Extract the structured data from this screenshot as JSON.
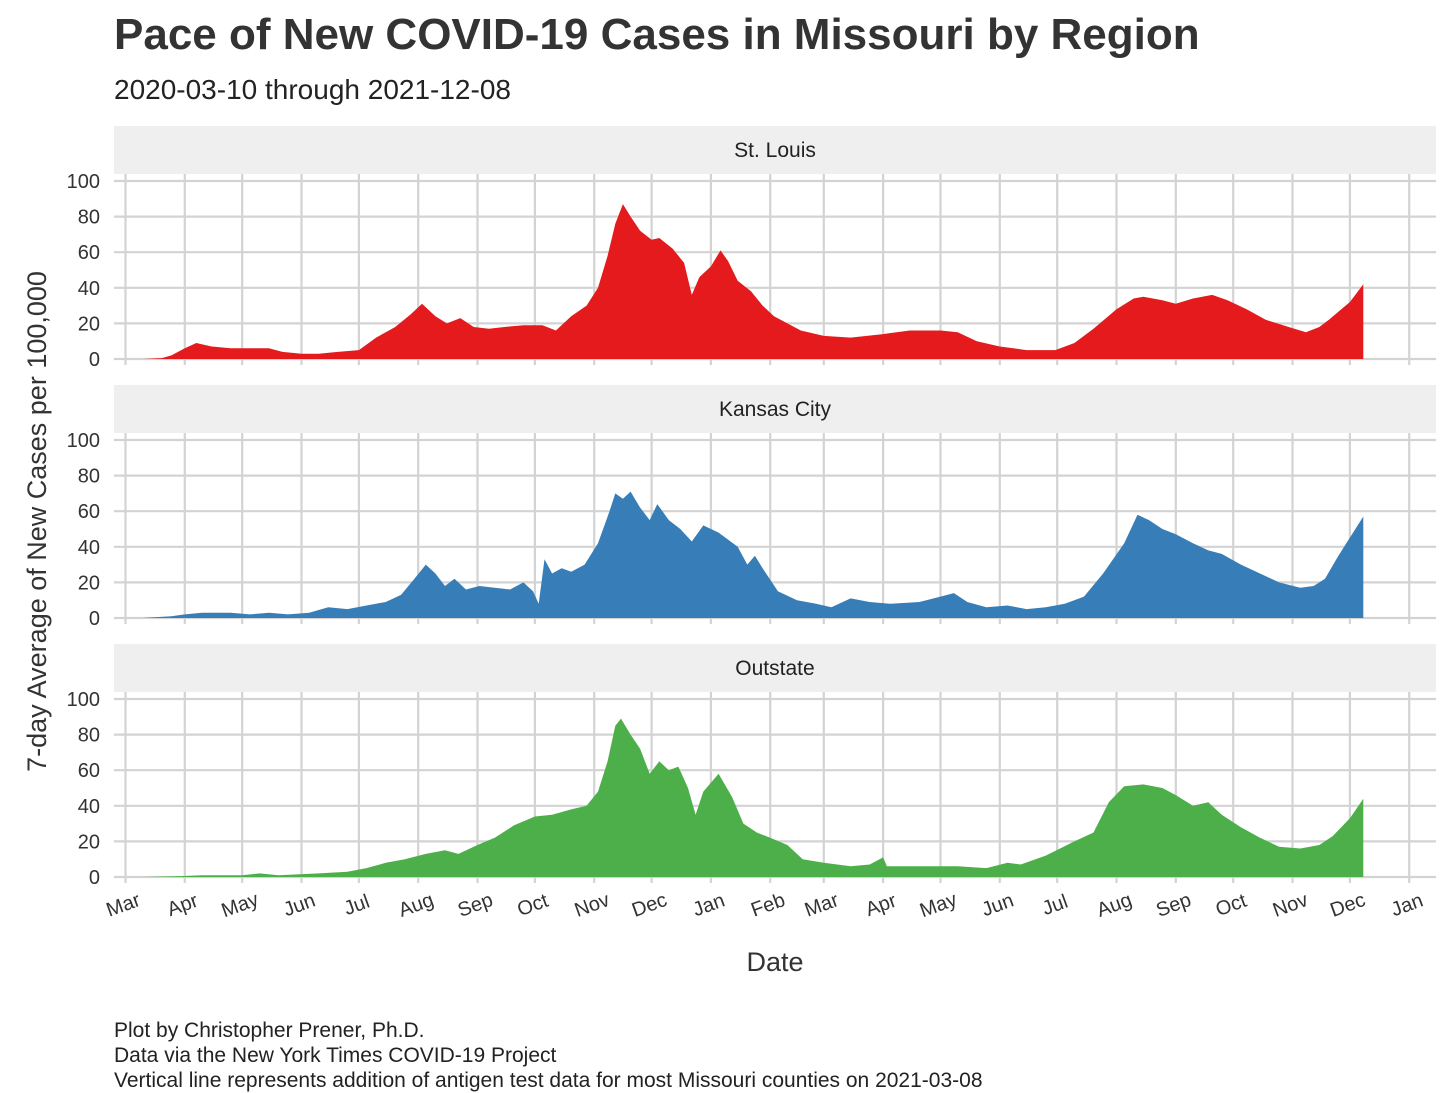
{
  "title": "Pace of New COVID-19 Cases in Missouri by Region",
  "subtitle": "2020-03-10 through 2021-12-08",
  "captions": [
    "Plot by Christopher Prener, Ph.D.",
    "Data via the New York Times COVID-19 Project",
    "Vertical line represents addition of antigen test data for most Missouri counties on 2021-03-08"
  ],
  "chart_data": {
    "type": "area",
    "facet_layout": "stacked panels, shared x axis",
    "xlabel": "Date",
    "ylabel": "7-day Average of New Cases per 100,000",
    "xlim": [
      "2020-02-24",
      "2022-01-15"
    ],
    "ylim": [
      0,
      100
    ],
    "y_ticks": [
      0,
      20,
      40,
      60,
      80,
      100
    ],
    "x_ticks": [
      {
        "date": "2020-03-01",
        "label": "Mar"
      },
      {
        "date": "2020-04-01",
        "label": "Apr"
      },
      {
        "date": "2020-05-01",
        "label": "May"
      },
      {
        "date": "2020-06-01",
        "label": "Jun"
      },
      {
        "date": "2020-07-01",
        "label": "Jul"
      },
      {
        "date": "2020-08-01",
        "label": "Aug"
      },
      {
        "date": "2020-09-01",
        "label": "Sep"
      },
      {
        "date": "2020-10-01",
        "label": "Oct"
      },
      {
        "date": "2020-11-01",
        "label": "Nov"
      },
      {
        "date": "2020-12-01",
        "label": "Dec"
      },
      {
        "date": "2021-01-01",
        "label": "Jan"
      },
      {
        "date": "2021-02-01",
        "label": "Feb"
      },
      {
        "date": "2021-03-01",
        "label": "Mar"
      },
      {
        "date": "2021-04-01",
        "label": "Apr"
      },
      {
        "date": "2021-05-01",
        "label": "May"
      },
      {
        "date": "2021-06-01",
        "label": "Jun"
      },
      {
        "date": "2021-07-01",
        "label": "Jul"
      },
      {
        "date": "2021-08-01",
        "label": "Aug"
      },
      {
        "date": "2021-09-01",
        "label": "Sep"
      },
      {
        "date": "2021-10-01",
        "label": "Oct"
      },
      {
        "date": "2021-11-01",
        "label": "Nov"
      },
      {
        "date": "2021-12-01",
        "label": "Dec"
      },
      {
        "date": "2022-01-01",
        "label": "Jan"
      }
    ],
    "grid": true,
    "legend": "none",
    "panels": [
      {
        "name": "St. Louis",
        "color": "#e41a1c",
        "points": [
          [
            "2020-03-10",
            0
          ],
          [
            "2020-03-20",
            0.5
          ],
          [
            "2020-03-25",
            2
          ],
          [
            "2020-04-01",
            6
          ],
          [
            "2020-04-07",
            9
          ],
          [
            "2020-04-15",
            7
          ],
          [
            "2020-04-25",
            6
          ],
          [
            "2020-05-05",
            6
          ],
          [
            "2020-05-15",
            6
          ],
          [
            "2020-05-22",
            4
          ],
          [
            "2020-06-01",
            3
          ],
          [
            "2020-06-10",
            3
          ],
          [
            "2020-06-20",
            4
          ],
          [
            "2020-07-01",
            5
          ],
          [
            "2020-07-10",
            12
          ],
          [
            "2020-07-20",
            18
          ],
          [
            "2020-07-28",
            25
          ],
          [
            "2020-08-03",
            31
          ],
          [
            "2020-08-10",
            24
          ],
          [
            "2020-08-16",
            20
          ],
          [
            "2020-08-23",
            23
          ],
          [
            "2020-08-30",
            18
          ],
          [
            "2020-09-07",
            17
          ],
          [
            "2020-09-15",
            18
          ],
          [
            "2020-09-25",
            19
          ],
          [
            "2020-10-05",
            19
          ],
          [
            "2020-10-12",
            16
          ],
          [
            "2020-10-20",
            24
          ],
          [
            "2020-10-28",
            30
          ],
          [
            "2020-11-03",
            40
          ],
          [
            "2020-11-08",
            58
          ],
          [
            "2020-11-12",
            76
          ],
          [
            "2020-11-16",
            87
          ],
          [
            "2020-11-20",
            80
          ],
          [
            "2020-11-25",
            72
          ],
          [
            "2020-12-01",
            67
          ],
          [
            "2020-12-05",
            68
          ],
          [
            "2020-12-12",
            62
          ],
          [
            "2020-12-18",
            54
          ],
          [
            "2020-12-22",
            36
          ],
          [
            "2020-12-26",
            46
          ],
          [
            "2021-01-01",
            52
          ],
          [
            "2021-01-06",
            61
          ],
          [
            "2021-01-10",
            55
          ],
          [
            "2021-01-15",
            44
          ],
          [
            "2021-01-22",
            38
          ],
          [
            "2021-01-28",
            30
          ],
          [
            "2021-02-03",
            24
          ],
          [
            "2021-02-10",
            20
          ],
          [
            "2021-02-17",
            16
          ],
          [
            "2021-03-01",
            13
          ],
          [
            "2021-03-15",
            12
          ],
          [
            "2021-04-01",
            14
          ],
          [
            "2021-04-15",
            16
          ],
          [
            "2021-05-01",
            16
          ],
          [
            "2021-05-10",
            15
          ],
          [
            "2021-05-20",
            10
          ],
          [
            "2021-06-01",
            7
          ],
          [
            "2021-06-15",
            5
          ],
          [
            "2021-06-30",
            5
          ],
          [
            "2021-07-10",
            9
          ],
          [
            "2021-07-20",
            17
          ],
          [
            "2021-08-01",
            28
          ],
          [
            "2021-08-10",
            34
          ],
          [
            "2021-08-15",
            35
          ],
          [
            "2021-08-25",
            33
          ],
          [
            "2021-09-01",
            31
          ],
          [
            "2021-09-10",
            34
          ],
          [
            "2021-09-20",
            36
          ],
          [
            "2021-09-28",
            33
          ],
          [
            "2021-10-08",
            28
          ],
          [
            "2021-10-18",
            22
          ],
          [
            "2021-10-30",
            18
          ],
          [
            "2021-11-08",
            15
          ],
          [
            "2021-11-15",
            18
          ],
          [
            "2021-11-20",
            22
          ],
          [
            "2021-12-01",
            32
          ],
          [
            "2021-12-08",
            42
          ]
        ]
      },
      {
        "name": "Kansas City",
        "color": "#377eb8",
        "points": [
          [
            "2020-03-10",
            0
          ],
          [
            "2020-03-25",
            1
          ],
          [
            "2020-04-01",
            2
          ],
          [
            "2020-04-10",
            3
          ],
          [
            "2020-04-25",
            3
          ],
          [
            "2020-05-05",
            2
          ],
          [
            "2020-05-15",
            3
          ],
          [
            "2020-05-25",
            2
          ],
          [
            "2020-06-05",
            3
          ],
          [
            "2020-06-15",
            6
          ],
          [
            "2020-06-25",
            5
          ],
          [
            "2020-07-05",
            7
          ],
          [
            "2020-07-15",
            9
          ],
          [
            "2020-07-23",
            13
          ],
          [
            "2020-07-30",
            22
          ],
          [
            "2020-08-05",
            30
          ],
          [
            "2020-08-10",
            25
          ],
          [
            "2020-08-15",
            18
          ],
          [
            "2020-08-20",
            22
          ],
          [
            "2020-08-26",
            16
          ],
          [
            "2020-09-02",
            18
          ],
          [
            "2020-09-10",
            17
          ],
          [
            "2020-09-18",
            16
          ],
          [
            "2020-09-25",
            20
          ],
          [
            "2020-09-30",
            15
          ],
          [
            "2020-10-03",
            8
          ],
          [
            "2020-10-06",
            33
          ],
          [
            "2020-10-10",
            25
          ],
          [
            "2020-10-15",
            28
          ],
          [
            "2020-10-20",
            26
          ],
          [
            "2020-10-27",
            30
          ],
          [
            "2020-11-03",
            42
          ],
          [
            "2020-11-09",
            60
          ],
          [
            "2020-11-12",
            70
          ],
          [
            "2020-11-16",
            67
          ],
          [
            "2020-11-20",
            71
          ],
          [
            "2020-11-25",
            62
          ],
          [
            "2020-11-30",
            55
          ],
          [
            "2020-12-04",
            64
          ],
          [
            "2020-12-10",
            55
          ],
          [
            "2020-12-16",
            50
          ],
          [
            "2020-12-22",
            43
          ],
          [
            "2020-12-28",
            52
          ],
          [
            "2021-01-05",
            48
          ],
          [
            "2021-01-15",
            40
          ],
          [
            "2021-01-20",
            30
          ],
          [
            "2021-01-24",
            35
          ],
          [
            "2021-01-28",
            28
          ],
          [
            "2021-02-05",
            15
          ],
          [
            "2021-02-15",
            10
          ],
          [
            "2021-02-25",
            8
          ],
          [
            "2021-03-05",
            6
          ],
          [
            "2021-03-15",
            11
          ],
          [
            "2021-03-25",
            9
          ],
          [
            "2021-04-05",
            8
          ],
          [
            "2021-04-20",
            9
          ],
          [
            "2021-05-01",
            12
          ],
          [
            "2021-05-08",
            14
          ],
          [
            "2021-05-15",
            9
          ],
          [
            "2021-05-25",
            6
          ],
          [
            "2021-06-05",
            7
          ],
          [
            "2021-06-15",
            5
          ],
          [
            "2021-06-25",
            6
          ],
          [
            "2021-07-05",
            8
          ],
          [
            "2021-07-15",
            12
          ],
          [
            "2021-07-25",
            25
          ],
          [
            "2021-08-05",
            42
          ],
          [
            "2021-08-12",
            58
          ],
          [
            "2021-08-18",
            55
          ],
          [
            "2021-08-25",
            50
          ],
          [
            "2021-09-01",
            47
          ],
          [
            "2021-09-10",
            42
          ],
          [
            "2021-09-18",
            38
          ],
          [
            "2021-09-25",
            36
          ],
          [
            "2021-10-05",
            30
          ],
          [
            "2021-10-15",
            25
          ],
          [
            "2021-10-25",
            20
          ],
          [
            "2021-11-05",
            17
          ],
          [
            "2021-11-12",
            18
          ],
          [
            "2021-11-18",
            22
          ],
          [
            "2021-11-25",
            35
          ],
          [
            "2021-12-08",
            57
          ]
        ]
      },
      {
        "name": "Outstate",
        "color": "#4daf4a",
        "points": [
          [
            "2020-03-10",
            0
          ],
          [
            "2020-03-30",
            0.5
          ],
          [
            "2020-04-10",
            1
          ],
          [
            "2020-05-01",
            1
          ],
          [
            "2020-05-10",
            2
          ],
          [
            "2020-05-20",
            1
          ],
          [
            "2020-06-10",
            2
          ],
          [
            "2020-06-25",
            3
          ],
          [
            "2020-07-05",
            5
          ],
          [
            "2020-07-15",
            8
          ],
          [
            "2020-07-25",
            10
          ],
          [
            "2020-08-05",
            13
          ],
          [
            "2020-08-15",
            15
          ],
          [
            "2020-08-22",
            13
          ],
          [
            "2020-09-01",
            18
          ],
          [
            "2020-09-10",
            22
          ],
          [
            "2020-09-20",
            29
          ],
          [
            "2020-10-01",
            34
          ],
          [
            "2020-10-10",
            35
          ],
          [
            "2020-10-20",
            38
          ],
          [
            "2020-10-28",
            40
          ],
          [
            "2020-11-03",
            48
          ],
          [
            "2020-11-08",
            65
          ],
          [
            "2020-11-12",
            85
          ],
          [
            "2020-11-15",
            89
          ],
          [
            "2020-11-20",
            80
          ],
          [
            "2020-11-25",
            72
          ],
          [
            "2020-11-30",
            58
          ],
          [
            "2020-12-05",
            65
          ],
          [
            "2020-12-10",
            60
          ],
          [
            "2020-12-15",
            62
          ],
          [
            "2020-12-20",
            50
          ],
          [
            "2020-12-24",
            35
          ],
          [
            "2020-12-28",
            48
          ],
          [
            "2021-01-05",
            58
          ],
          [
            "2021-01-12",
            45
          ],
          [
            "2021-01-18",
            30
          ],
          [
            "2021-01-25",
            25
          ],
          [
            "2021-02-01",
            22
          ],
          [
            "2021-02-10",
            18
          ],
          [
            "2021-02-18",
            10
          ],
          [
            "2021-03-01",
            8
          ],
          [
            "2021-03-15",
            6
          ],
          [
            "2021-03-25",
            7
          ],
          [
            "2021-04-01",
            11
          ],
          [
            "2021-04-03",
            6
          ],
          [
            "2021-04-15",
            6
          ],
          [
            "2021-05-01",
            6
          ],
          [
            "2021-05-10",
            6
          ],
          [
            "2021-05-25",
            5
          ],
          [
            "2021-06-05",
            8
          ],
          [
            "2021-06-12",
            7
          ],
          [
            "2021-06-25",
            12
          ],
          [
            "2021-07-10",
            20
          ],
          [
            "2021-07-20",
            25
          ],
          [
            "2021-07-28",
            42
          ],
          [
            "2021-08-05",
            51
          ],
          [
            "2021-08-15",
            52
          ],
          [
            "2021-08-25",
            50
          ],
          [
            "2021-09-01",
            46
          ],
          [
            "2021-09-10",
            40
          ],
          [
            "2021-09-18",
            42
          ],
          [
            "2021-09-25",
            35
          ],
          [
            "2021-10-05",
            28
          ],
          [
            "2021-10-15",
            22
          ],
          [
            "2021-10-25",
            17
          ],
          [
            "2021-11-05",
            16
          ],
          [
            "2021-11-15",
            18
          ],
          [
            "2021-11-22",
            23
          ],
          [
            "2021-12-01",
            33
          ],
          [
            "2021-12-08",
            44
          ]
        ]
      }
    ]
  }
}
